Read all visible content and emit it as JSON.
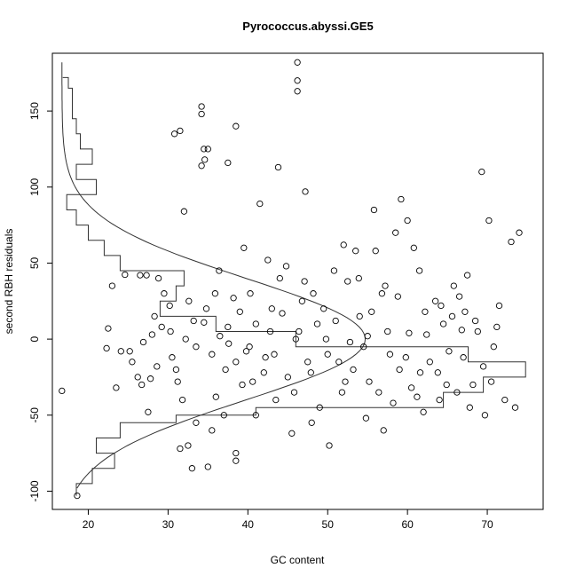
{
  "chart_data": {
    "type": "scatter",
    "title": "Pyrococcus.abyssi.GE5",
    "xlabel": "GC content",
    "ylabel": "second RBH residuals",
    "xlim": [
      15.5,
      77
    ],
    "ylim": [
      -112,
      188
    ],
    "xticks": [
      20,
      30,
      40,
      50,
      60,
      70
    ],
    "yticks": [
      -100,
      -50,
      0,
      50,
      100,
      150
    ],
    "grid": false,
    "legend": "none",
    "marker": "open-circle",
    "colors": {
      "points": "#000000",
      "lines": "#333333",
      "frame": "#000000"
    },
    "series": [
      {
        "points": [
          [
            46.2,
            182
          ],
          [
            46.2,
            170
          ],
          [
            46.2,
            163
          ],
          [
            38.5,
            140
          ],
          [
            34.2,
            153
          ],
          [
            34.2,
            148
          ],
          [
            31.5,
            137
          ],
          [
            30.8,
            135
          ],
          [
            34.5,
            125
          ],
          [
            35,
            125
          ],
          [
            34.6,
            118
          ],
          [
            34.2,
            114
          ],
          [
            37.5,
            116
          ],
          [
            43.8,
            113
          ],
          [
            47.2,
            97
          ],
          [
            41.5,
            89
          ],
          [
            32,
            84
          ],
          [
            24.6,
            42.4
          ],
          [
            26.5,
            42
          ],
          [
            27.3,
            42
          ],
          [
            28.8,
            40
          ],
          [
            23,
            35
          ],
          [
            22.5,
            7
          ],
          [
            16.7,
            -34
          ],
          [
            23.5,
            -32
          ],
          [
            25.2,
            -8
          ],
          [
            26.2,
            -25
          ],
          [
            26.7,
            -30
          ],
          [
            24.1,
            -8
          ],
          [
            27.5,
            -48
          ],
          [
            18.6,
            -103
          ],
          [
            22.3,
            -6
          ],
          [
            28,
            3
          ],
          [
            30.3,
            5
          ],
          [
            29.5,
            30
          ],
          [
            31,
            -20
          ],
          [
            32.2,
            0
          ],
          [
            33.5,
            -5
          ],
          [
            34.5,
            11
          ],
          [
            35.5,
            -10
          ],
          [
            36.5,
            2
          ],
          [
            37.5,
            8
          ],
          [
            38.5,
            -15
          ],
          [
            39.3,
            -30
          ],
          [
            40.2,
            -5
          ],
          [
            41,
            10
          ],
          [
            42,
            -22
          ],
          [
            42.8,
            5
          ],
          [
            43.5,
            -40
          ],
          [
            44.3,
            17
          ],
          [
            45,
            -25
          ],
          [
            46,
            0
          ],
          [
            46.8,
            25
          ],
          [
            47.5,
            -15
          ],
          [
            48.2,
            30
          ],
          [
            49,
            -45
          ],
          [
            50,
            -10
          ],
          [
            51,
            12
          ],
          [
            51.8,
            -35
          ],
          [
            52.5,
            38
          ],
          [
            53.2,
            -20
          ],
          [
            54,
            15
          ],
          [
            54.5,
            -5
          ],
          [
            55.2,
            -28
          ],
          [
            56,
            58
          ],
          [
            56.8,
            30
          ],
          [
            57.5,
            5
          ],
          [
            58.2,
            -42
          ],
          [
            59,
            -20
          ],
          [
            59.2,
            92
          ],
          [
            60,
            78
          ],
          [
            60.8,
            60
          ],
          [
            61.5,
            45
          ],
          [
            62.2,
            18
          ],
          [
            62.8,
            -15
          ],
          [
            63.5,
            25
          ],
          [
            64,
            -40
          ],
          [
            64.5,
            10
          ],
          [
            65.2,
            -8
          ],
          [
            65.8,
            35
          ],
          [
            66.5,
            28
          ],
          [
            67,
            -12
          ],
          [
            67.5,
            42
          ],
          [
            68.2,
            -30
          ],
          [
            68.8,
            5
          ],
          [
            69.3,
            110
          ],
          [
            69.5,
            -18
          ],
          [
            70.2,
            78
          ],
          [
            70.8,
            -5
          ],
          [
            71.5,
            22
          ],
          [
            72.2,
            -40
          ],
          [
            73,
            64
          ],
          [
            74,
            70
          ],
          [
            73.5,
            -45
          ],
          [
            62,
            -48
          ],
          [
            60.5,
            -32
          ],
          [
            58.5,
            70
          ],
          [
            57,
            -60
          ],
          [
            55.8,
            85
          ],
          [
            53.5,
            58
          ],
          [
            52,
            62
          ],
          [
            50.2,
            -70
          ],
          [
            48,
            -55
          ],
          [
            45.5,
            -62
          ],
          [
            44,
            40
          ],
          [
            42.5,
            52
          ],
          [
            41,
            -50
          ],
          [
            39.5,
            60
          ],
          [
            38.5,
            -75
          ],
          [
            37,
            -50
          ],
          [
            35.5,
            -60
          ],
          [
            33.5,
            -55
          ],
          [
            32.5,
            -70
          ],
          [
            31.5,
            -72
          ],
          [
            33,
            -85
          ],
          [
            35,
            -84
          ],
          [
            38.5,
            -80
          ],
          [
            38.2,
            27
          ],
          [
            36.4,
            45
          ],
          [
            37.6,
            -3
          ],
          [
            40.6,
            -28
          ],
          [
            43.3,
            -10
          ],
          [
            46.4,
            5
          ],
          [
            49.5,
            20
          ],
          [
            52.8,
            -2
          ],
          [
            55.5,
            18
          ],
          [
            57.8,
            -10
          ],
          [
            60.2,
            4
          ],
          [
            63.8,
            -22
          ],
          [
            66.2,
            -35
          ],
          [
            68.5,
            12
          ],
          [
            70.5,
            -28
          ],
          [
            71.2,
            8
          ],
          [
            67.8,
            -45
          ],
          [
            65.6,
            15
          ],
          [
            61.6,
            -22
          ],
          [
            58.8,
            28
          ],
          [
            56.4,
            -35
          ],
          [
            53.9,
            40
          ],
          [
            51.4,
            -15
          ],
          [
            48.7,
            10
          ],
          [
            45.8,
            -35
          ],
          [
            43,
            20
          ],
          [
            40.3,
            30
          ],
          [
            37.2,
            -20
          ],
          [
            34.8,
            20
          ],
          [
            32.6,
            25
          ],
          [
            30.5,
            -12
          ],
          [
            28.6,
            -18
          ],
          [
            26.9,
            -2
          ],
          [
            25.5,
            -15
          ],
          [
            29.2,
            8
          ],
          [
            31.8,
            -40
          ],
          [
            35.9,
            30
          ],
          [
            39.8,
            -8
          ],
          [
            44.8,
            48
          ],
          [
            47.9,
            -22
          ],
          [
            50.8,
            45
          ],
          [
            54.8,
            -52
          ],
          [
            57.2,
            35
          ],
          [
            59.8,
            -12
          ],
          [
            62.4,
            3
          ],
          [
            64.9,
            -30
          ],
          [
            67.2,
            18
          ],
          [
            69.7,
            -50
          ],
          [
            66.8,
            6
          ],
          [
            64.2,
            22
          ],
          [
            61.2,
            -38
          ],
          [
            55,
            2
          ],
          [
            52.2,
            -28
          ],
          [
            49.8,
            0
          ],
          [
            47.1,
            38
          ],
          [
            42.2,
            -12
          ],
          [
            39,
            18
          ],
          [
            36,
            -38
          ],
          [
            33.2,
            12
          ],
          [
            30.2,
            22
          ],
          [
            27.8,
            -26
          ],
          [
            28.3,
            15
          ],
          [
            31.2,
            -28
          ]
        ]
      }
    ],
    "overlays": {
      "histogram_y_outline": [
        [
          -103,
          18.5
        ],
        [
          -95,
          18.5
        ],
        [
          -95,
          20.5
        ],
        [
          -85,
          20.5
        ],
        [
          -85,
          23.3
        ],
        [
          -75,
          23.3
        ],
        [
          -75,
          21
        ],
        [
          -65,
          21
        ],
        [
          -65,
          24
        ],
        [
          -55,
          24
        ],
        [
          -55,
          31
        ],
        [
          -50,
          31
        ],
        [
          -50,
          41
        ],
        [
          -45,
          41
        ],
        [
          -45,
          64.5
        ],
        [
          -35,
          64.5
        ],
        [
          -35,
          69.5
        ],
        [
          -25,
          69.5
        ],
        [
          -25,
          74.8
        ],
        [
          -15,
          74.8
        ],
        [
          -15,
          67.6
        ],
        [
          -5,
          67.6
        ],
        [
          -5,
          46
        ],
        [
          5,
          46
        ],
        [
          5,
          36
        ],
        [
          15,
          36
        ],
        [
          15,
          29
        ],
        [
          25,
          29
        ],
        [
          25,
          31
        ],
        [
          35,
          31
        ],
        [
          35,
          32
        ],
        [
          45,
          32
        ],
        [
          45,
          24
        ],
        [
          55,
          24
        ],
        [
          55,
          22
        ],
        [
          65,
          22
        ],
        [
          65,
          20
        ],
        [
          75,
          20
        ],
        [
          75,
          18.5
        ],
        [
          85,
          18.5
        ],
        [
          85,
          17.3
        ],
        [
          95,
          17.3
        ],
        [
          95,
          21
        ],
        [
          105,
          21
        ],
        [
          105,
          18.5
        ],
        [
          115,
          18.5
        ],
        [
          115,
          20.5
        ],
        [
          125,
          20.5
        ],
        [
          125,
          19
        ],
        [
          135,
          19
        ],
        [
          135,
          18.5
        ],
        [
          145,
          18.5
        ],
        [
          145,
          18
        ],
        [
          155,
          18
        ],
        [
          155,
          18
        ],
        [
          165,
          18
        ],
        [
          165,
          17.5
        ],
        [
          172,
          17.5
        ],
        [
          172,
          16.8
        ]
      ],
      "density_curve": {
        "center_y": 0,
        "sd_y": 40,
        "baseline_x": 16.7,
        "peak_height_x": 38,
        "y_range": [
          -98,
          182
        ]
      }
    }
  }
}
